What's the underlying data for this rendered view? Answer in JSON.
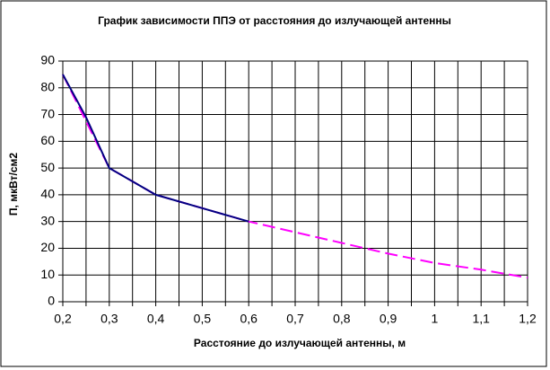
{
  "chart_data": {
    "type": "line",
    "title": "График зависимости ППЭ от расстояния до излучающей антенны",
    "xlabel": "Расстояние до излучающей антенны, м",
    "ylabel": "П, мкВт/см2",
    "xlim": [
      0.2,
      1.2
    ],
    "ylim": [
      0,
      90
    ],
    "xticks": [
      {
        "value": 0.2,
        "label": "0,2"
      },
      {
        "value": 0.25,
        "label": null
      },
      {
        "value": 0.3,
        "label": "0,3"
      },
      {
        "value": 0.35,
        "label": null
      },
      {
        "value": 0.4,
        "label": "0,4"
      },
      {
        "value": 0.45,
        "label": null
      },
      {
        "value": 0.5,
        "label": "0,5"
      },
      {
        "value": 0.55,
        "label": null
      },
      {
        "value": 0.6,
        "label": "0,6"
      },
      {
        "value": 0.65,
        "label": null
      },
      {
        "value": 0.7,
        "label": "0,7"
      },
      {
        "value": 0.75,
        "label": null
      },
      {
        "value": 0.8,
        "label": "0,8"
      },
      {
        "value": 0.85,
        "label": null
      },
      {
        "value": 0.9,
        "label": "0,9"
      },
      {
        "value": 0.95,
        "label": null
      },
      {
        "value": 1,
        "label": "1"
      },
      {
        "value": 1.05,
        "label": null
      },
      {
        "value": 1.1,
        "label": "1,1"
      },
      {
        "value": 1.15,
        "label": null
      },
      {
        "value": 1.2,
        "label": "1,2"
      }
    ],
    "yticks": [
      0,
      10,
      20,
      30,
      40,
      50,
      60,
      70,
      80,
      90
    ],
    "grid": true,
    "series": [
      {
        "color": "#ff00ff",
        "dash": true,
        "x": [
          0.2,
          0.3,
          0.4,
          0.5,
          0.6,
          0.7,
          0.8,
          0.9,
          1,
          1.1,
          1.2
        ],
        "values": [
          85,
          50,
          40,
          35,
          30,
          26,
          22,
          18,
          14.5,
          12,
          9
        ]
      },
      {
        "color": "#000080",
        "dash": false,
        "x": [
          0.2,
          0.25,
          0.3,
          0.4,
          0.5,
          0.6
        ],
        "values": [
          85,
          69,
          50,
          40,
          35,
          30
        ]
      }
    ]
  }
}
